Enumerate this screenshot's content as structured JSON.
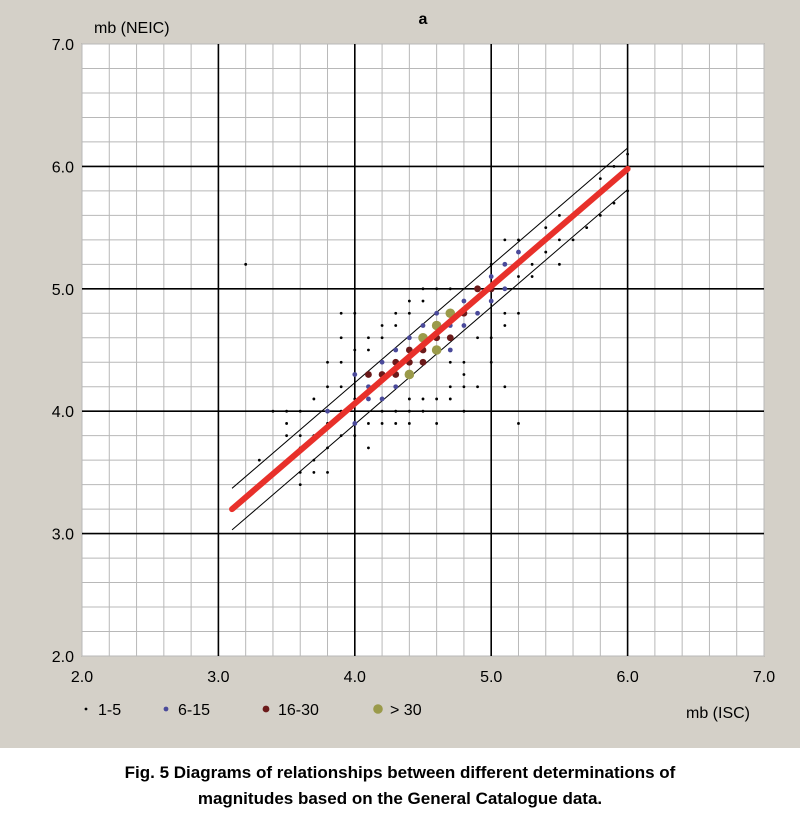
{
  "chart_data": {
    "type": "scatter",
    "title": "a",
    "xlabel": "mb (ISC)",
    "ylabel": "mb (NEIC)",
    "xlim": [
      2.0,
      7.0
    ],
    "ylim": [
      2.0,
      7.0
    ],
    "x_ticks": [
      "2.0",
      "3.0",
      "4.0",
      "5.0",
      "6.0",
      "7.0"
    ],
    "y_ticks": [
      "2.0",
      "3.0",
      "4.0",
      "5.0",
      "6.0",
      "7.0"
    ],
    "grid": true,
    "legend_position": "bottom",
    "legend": [
      {
        "label": "1-5",
        "color": "#000000",
        "class": "small"
      },
      {
        "label": "6-15",
        "color": "#4a4a9a",
        "class": "medium"
      },
      {
        "label": "16-30",
        "color": "#6b1a1a",
        "class": "large"
      },
      {
        "label": "> 30",
        "color": "#9a9a4a",
        "class": "xlarge"
      }
    ],
    "regression_line": {
      "x": [
        3.1,
        6.0
      ],
      "y": [
        3.2,
        5.98
      ],
      "color": "#e8302a"
    },
    "bounds": [
      {
        "x": [
          3.1,
          6.0
        ],
        "y": [
          3.37,
          6.15
        ]
      },
      {
        "x": [
          3.1,
          6.0
        ],
        "y": [
          3.03,
          5.81
        ]
      }
    ],
    "series": [
      {
        "name": "1-5",
        "color": "#000000",
        "points": [
          [
            3.2,
            5.2
          ],
          [
            3.3,
            3.6
          ],
          [
            3.4,
            3.5
          ],
          [
            3.4,
            4.0
          ],
          [
            3.5,
            3.8
          ],
          [
            3.5,
            3.9
          ],
          [
            3.5,
            4.0
          ],
          [
            3.6,
            3.4
          ],
          [
            3.6,
            3.5
          ],
          [
            3.6,
            3.7
          ],
          [
            3.6,
            3.8
          ],
          [
            3.6,
            4.0
          ],
          [
            3.7,
            3.5
          ],
          [
            3.7,
            3.6
          ],
          [
            3.7,
            3.8
          ],
          [
            3.7,
            4.1
          ],
          [
            3.8,
            3.5
          ],
          [
            3.8,
            3.7
          ],
          [
            3.8,
            3.9
          ],
          [
            3.8,
            4.2
          ],
          [
            3.8,
            4.4
          ],
          [
            3.9,
            3.8
          ],
          [
            3.9,
            4.0
          ],
          [
            3.9,
            4.2
          ],
          [
            3.9,
            4.4
          ],
          [
            3.9,
            4.6
          ],
          [
            3.9,
            4.8
          ],
          [
            4.0,
            3.8
          ],
          [
            4.0,
            4.1
          ],
          [
            4.0,
            4.3
          ],
          [
            4.0,
            4.5
          ],
          [
            4.0,
            4.8
          ],
          [
            4.1,
            3.7
          ],
          [
            4.1,
            3.9
          ],
          [
            4.1,
            4.1
          ],
          [
            4.1,
            4.5
          ],
          [
            4.1,
            4.6
          ],
          [
            4.2,
            3.9
          ],
          [
            4.2,
            4.0
          ],
          [
            4.2,
            4.6
          ],
          [
            4.2,
            4.7
          ],
          [
            4.3,
            3.9
          ],
          [
            4.3,
            4.0
          ],
          [
            4.3,
            4.2
          ],
          [
            4.3,
            4.7
          ],
          [
            4.3,
            4.8
          ],
          [
            4.4,
            3.9
          ],
          [
            4.4,
            4.0
          ],
          [
            4.4,
            4.1
          ],
          [
            4.4,
            4.8
          ],
          [
            4.4,
            4.9
          ],
          [
            4.5,
            4.0
          ],
          [
            4.5,
            4.1
          ],
          [
            4.5,
            4.9
          ],
          [
            4.5,
            5.0
          ],
          [
            4.6,
            3.9
          ],
          [
            4.6,
            4.1
          ],
          [
            4.6,
            5.0
          ],
          [
            4.7,
            4.1
          ],
          [
            4.7,
            4.2
          ],
          [
            4.7,
            4.4
          ],
          [
            4.7,
            5.0
          ],
          [
            4.8,
            4.2
          ],
          [
            4.8,
            4.3
          ],
          [
            4.8,
            4.4
          ],
          [
            4.9,
            4.2
          ],
          [
            4.9,
            4.6
          ],
          [
            4.9,
            4.8
          ],
          [
            5.0,
            4.4
          ],
          [
            5.0,
            4.6
          ],
          [
            5.0,
            5.0
          ],
          [
            5.0,
            5.2
          ],
          [
            5.1,
            4.2
          ],
          [
            5.1,
            4.7
          ],
          [
            5.1,
            4.8
          ],
          [
            5.1,
            5.4
          ],
          [
            5.2,
            3.9
          ],
          [
            5.2,
            4.8
          ],
          [
            5.2,
            5.1
          ],
          [
            5.2,
            5.4
          ],
          [
            5.3,
            5.1
          ],
          [
            5.3,
            5.2
          ],
          [
            5.4,
            5.3
          ],
          [
            5.4,
            5.5
          ],
          [
            5.5,
            5.2
          ],
          [
            5.5,
            5.4
          ],
          [
            5.5,
            5.6
          ],
          [
            5.6,
            5.4
          ],
          [
            5.6,
            5.6
          ],
          [
            5.7,
            5.5
          ],
          [
            5.7,
            5.7
          ],
          [
            5.8,
            5.6
          ],
          [
            5.8,
            5.9
          ],
          [
            5.9,
            5.7
          ],
          [
            5.9,
            6.0
          ],
          [
            6.0,
            5.8
          ],
          [
            6.0,
            6.1
          ],
          [
            4.8,
            4.0
          ]
        ]
      },
      {
        "name": "6-15",
        "color": "#4a4a9a",
        "points": [
          [
            3.8,
            4.0
          ],
          [
            4.0,
            4.3
          ],
          [
            4.0,
            3.9
          ],
          [
            4.1,
            4.2
          ],
          [
            4.1,
            4.1
          ],
          [
            4.2,
            4.1
          ],
          [
            4.2,
            4.4
          ],
          [
            4.3,
            4.2
          ],
          [
            4.3,
            4.5
          ],
          [
            4.4,
            4.3
          ],
          [
            4.4,
            4.6
          ],
          [
            4.5,
            4.4
          ],
          [
            4.5,
            4.7
          ],
          [
            4.6,
            4.5
          ],
          [
            4.6,
            4.8
          ],
          [
            4.7,
            4.5
          ],
          [
            4.7,
            4.7
          ],
          [
            4.8,
            4.7
          ],
          [
            4.8,
            4.9
          ],
          [
            4.9,
            4.8
          ],
          [
            5.0,
            4.9
          ],
          [
            5.0,
            5.1
          ],
          [
            5.1,
            5.0
          ],
          [
            5.1,
            5.2
          ],
          [
            5.2,
            5.3
          ]
        ]
      },
      {
        "name": "16-30",
        "color": "#6b1a1a",
        "points": [
          [
            4.1,
            4.3
          ],
          [
            4.2,
            4.3
          ],
          [
            4.3,
            4.4
          ],
          [
            4.4,
            4.4
          ],
          [
            4.4,
            4.5
          ],
          [
            4.5,
            4.4
          ],
          [
            4.5,
            4.5
          ],
          [
            4.6,
            4.6
          ],
          [
            4.7,
            4.6
          ],
          [
            4.7,
            4.8
          ],
          [
            4.8,
            4.8
          ],
          [
            4.9,
            5.0
          ],
          [
            5.0,
            5.0
          ],
          [
            4.3,
            4.3
          ]
        ]
      },
      {
        "name": "> 30",
        "color": "#9a9a4a",
        "points": [
          [
            4.4,
            4.3
          ],
          [
            4.5,
            4.6
          ],
          [
            4.6,
            4.7
          ],
          [
            4.7,
            4.8
          ],
          [
            4.6,
            4.5
          ]
        ]
      }
    ]
  },
  "caption": {
    "line1": "Fig. 5 Diagrams of relationships  between  different determinations of",
    "line2": "magnitudes   based on the  General Catalogue data."
  }
}
